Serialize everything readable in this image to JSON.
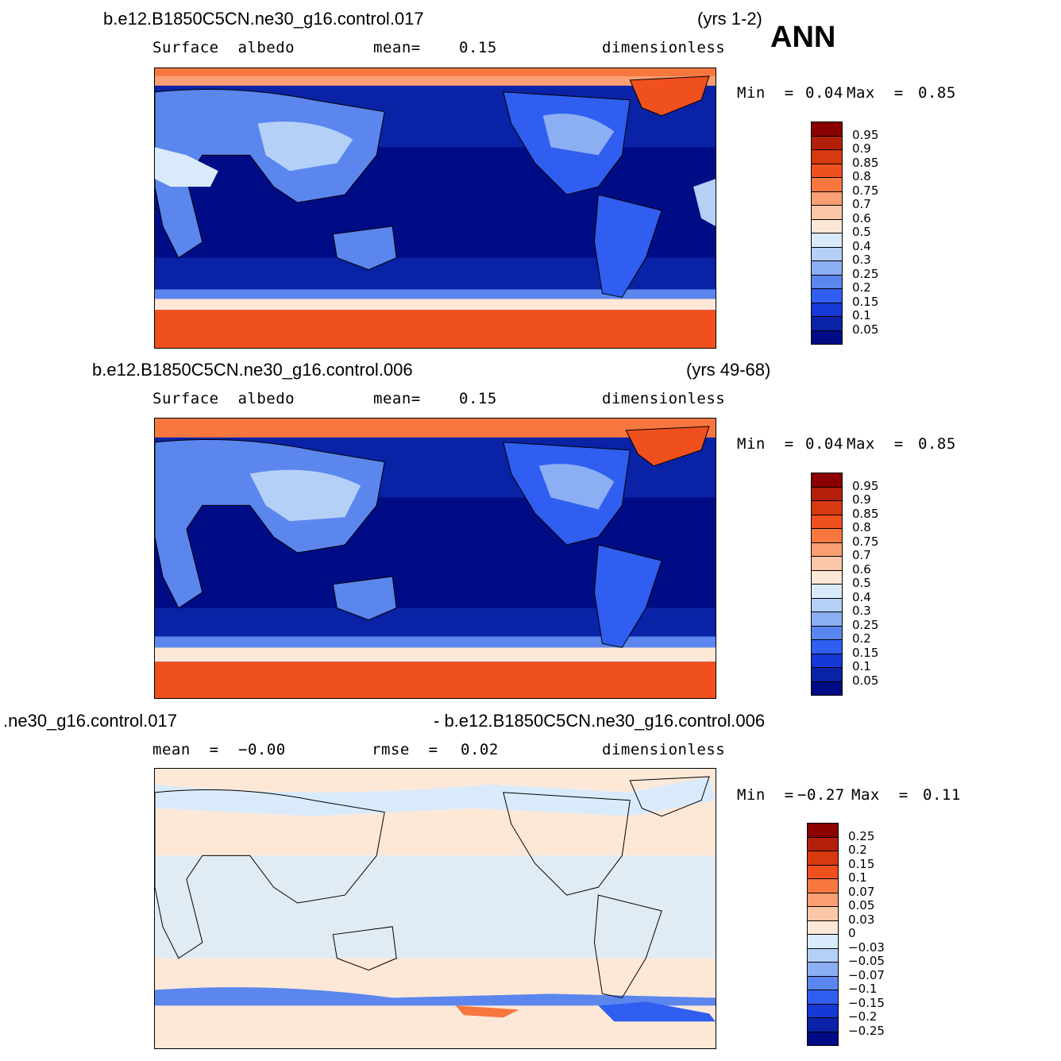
{
  "season": "ANN",
  "panels": [
    {
      "case_title": "b.e12.B1850C5CN.ne30_g16.control.017",
      "years": "(yrs 1-2)",
      "variable": "Surface  albedo",
      "stat1_label": "mean=",
      "stat1_value": "0.15",
      "units": "dimensionless",
      "min_label": "Min  =",
      "min_value": "0.04",
      "max_label": "Max  =",
      "max_value": "0.85",
      "colorbar_labels": [
        "0.95",
        "0.9",
        "0.85",
        "0.8",
        "0.75",
        "0.7",
        "0.6",
        "0.5",
        "0.4",
        "0.3",
        "0.25",
        "0.2",
        "0.15",
        "0.1",
        "0.05"
      ]
    },
    {
      "case_title": "b.e12.B1850C5CN.ne30_g16.control.006",
      "years": "(yrs 49-68)",
      "variable": "Surface  albedo",
      "stat1_label": "mean=",
      "stat1_value": "0.15",
      "units": "dimensionless",
      "min_label": "Min  =",
      "min_value": "0.04",
      "max_label": "Max  =",
      "max_value": "0.85",
      "colorbar_labels": [
        "0.95",
        "0.9",
        "0.85",
        "0.8",
        "0.75",
        "0.7",
        "0.6",
        "0.5",
        "0.4",
        "0.3",
        "0.25",
        "0.2",
        "0.15",
        "0.1",
        "0.05"
      ]
    },
    {
      "case_title_left": ".ne30_g16.control.017",
      "case_title_right": "- b.e12.B1850C5CN.ne30_g16.control.006",
      "stat1_label": "mean  =",
      "stat1_value": "−0.00",
      "stat2_label": "rmse  =",
      "stat2_value": "0.02",
      "units": "dimensionless",
      "min_label": "Min  =",
      "min_value": "−0.27",
      "max_label": "Max  =",
      "max_value": "0.11",
      "colorbar_labels": [
        "0.25",
        "0.2",
        "0.15",
        "0.1",
        "0.07",
        "0.05",
        "0.03",
        "0",
        "−0.03",
        "−0.05",
        "−0.07",
        "−0.1",
        "−0.15",
        "−0.2",
        "−0.25"
      ]
    }
  ],
  "colors": {
    "field_scale": [
      "#8b0000",
      "#b3200a",
      "#d63a0e",
      "#f0501e",
      "#f8773f",
      "#fa9e73",
      "#fcc7a8",
      "#fde8d8",
      "#d9ebfb",
      "#b4d0f7",
      "#8caef2",
      "#5b86ee",
      "#2f5ef0",
      "#1638d6",
      "#0a22a6",
      "#000c85"
    ],
    "diff_scale": [
      "#8b0000",
      "#b3200a",
      "#d63a0e",
      "#f0501e",
      "#f8773f",
      "#fa9e73",
      "#fcc7a8",
      "#fde8d8",
      "#d9ebfb",
      "#b4d0f7",
      "#8caef2",
      "#5b86ee",
      "#2f5ef0",
      "#1638d6",
      "#0a22a6",
      "#000c85"
    ]
  }
}
